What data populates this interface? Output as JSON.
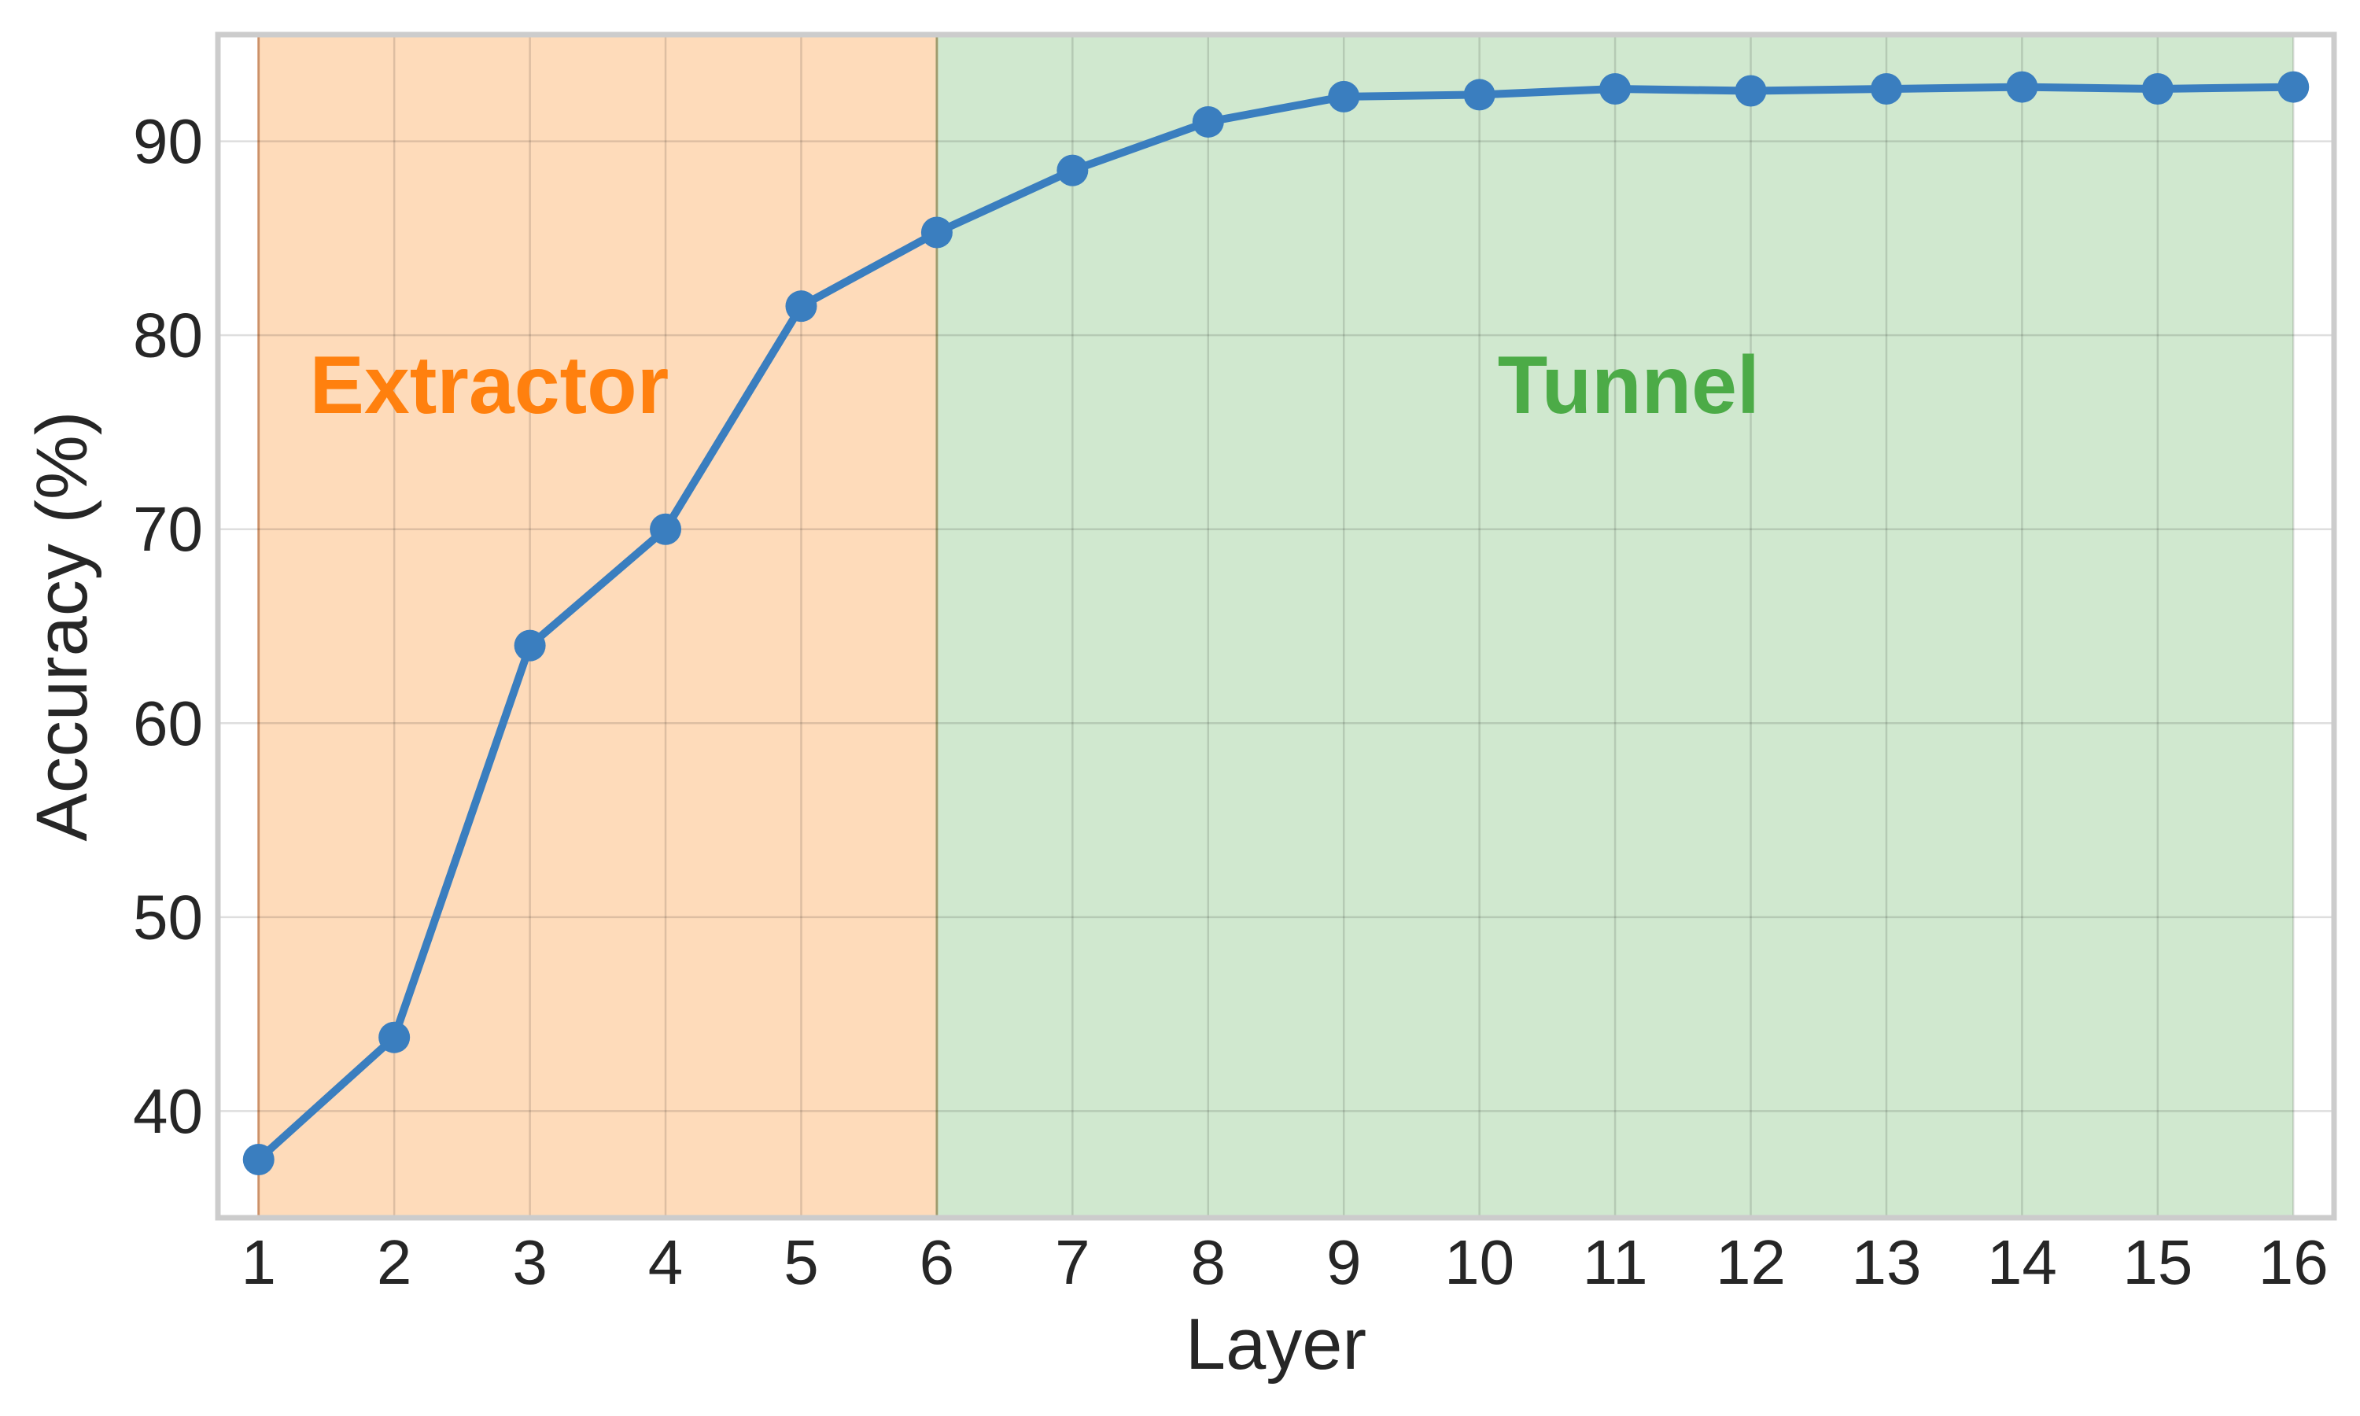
{
  "chart_data": {
    "type": "line",
    "title": "",
    "xlabel": "Layer",
    "ylabel": "Accuracy (%)",
    "x": [
      1,
      2,
      3,
      4,
      5,
      6,
      7,
      8,
      9,
      10,
      11,
      12,
      13,
      14,
      15,
      16
    ],
    "xlim": [
      0.7,
      16.3
    ],
    "ylim": [
      34.5,
      95.5
    ],
    "xticks": [
      1,
      2,
      3,
      4,
      5,
      6,
      7,
      8,
      9,
      10,
      11,
      12,
      13,
      14,
      15,
      16
    ],
    "yticks": [
      40,
      50,
      60,
      70,
      80,
      90
    ],
    "grid": true,
    "series": [
      {
        "values": [
          37.5,
          43.8,
          64.0,
          70.0,
          81.5,
          85.3,
          88.5,
          91.0,
          92.3,
          92.4,
          92.7,
          92.6,
          92.7,
          92.8,
          92.7,
          92.8
        ],
        "color": "#3a7ebf"
      }
    ],
    "regions": [
      {
        "label": "Extractor",
        "x_start": 1,
        "x_end": 6,
        "fill": "#fedbba",
        "label_color": "#ff800e",
        "label_x": 2.7,
        "label_y": 76
      },
      {
        "label": "Tunnel",
        "x_start": 6,
        "x_end": 16,
        "fill": "#d0e8cf",
        "label_color": "#4cab47",
        "label_x": 11.1,
        "label_y": 76
      }
    ]
  }
}
